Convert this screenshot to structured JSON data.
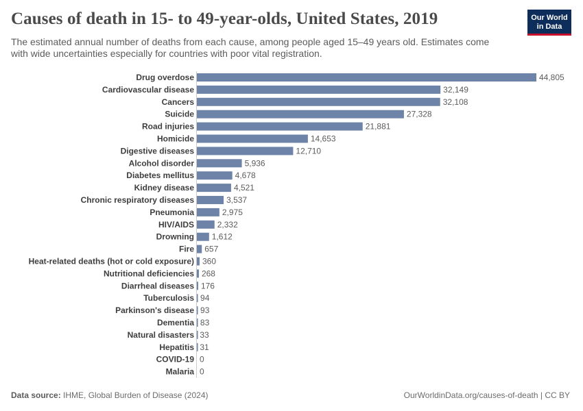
{
  "header": {
    "title": "Causes of death in 15- to 49-year-olds, United States, 2019",
    "subtitle": "The estimated annual number of deaths from each cause, among people aged 15–49 years old. Estimates come with wide uncertainties especially for countries with poor vital registration."
  },
  "logo": {
    "line1": "Our World",
    "line2": "in Data"
  },
  "footer": {
    "source_label": "Data source:",
    "source_text": "IHME, Global Burden of Disease (2024)",
    "credit": "OurWorldinData.org/causes-of-death | CC BY"
  },
  "colors": {
    "bar": "#6d83a8",
    "axis": "#cccccc"
  },
  "chart_data": {
    "type": "bar",
    "orientation": "horizontal",
    "categories": [
      "Drug overdose",
      "Cardiovascular disease",
      "Cancers",
      "Suicide",
      "Road injuries",
      "Homicide",
      "Digestive diseases",
      "Alcohol disorder",
      "Diabetes mellitus",
      "Kidney disease",
      "Chronic respiratory diseases",
      "Pneumonia",
      "HIV/AIDS",
      "Drowning",
      "Fire",
      "Heat-related deaths (hot or cold exposure)",
      "Nutritional deficiencies",
      "Diarrheal diseases",
      "Tuberculosis",
      "Parkinson's disease",
      "Dementia",
      "Natural disasters",
      "Hepatitis",
      "COVID-19",
      "Malaria"
    ],
    "values": [
      44805,
      32149,
      32108,
      27328,
      21881,
      14653,
      12710,
      5936,
      4678,
      4521,
      3537,
      2975,
      2332,
      1612,
      657,
      360,
      268,
      176,
      94,
      93,
      83,
      33,
      31,
      0,
      0
    ],
    "value_labels": [
      "44,805",
      "32,149",
      "32,108",
      "27,328",
      "21,881",
      "14,653",
      "12,710",
      "5,936",
      "4,678",
      "4,521",
      "3,537",
      "2,975",
      "2,332",
      "1,612",
      "657",
      "360",
      "268",
      "176",
      "94",
      "93",
      "83",
      "33",
      "31",
      "0",
      "0"
    ],
    "xlim": [
      0,
      44805
    ],
    "grid": false,
    "legend": "none"
  }
}
